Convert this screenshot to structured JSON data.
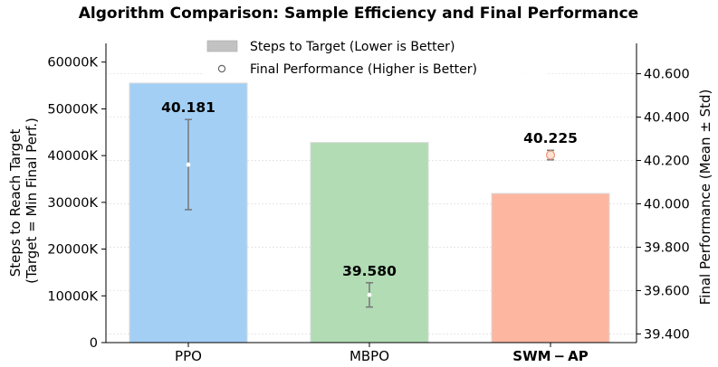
{
  "chart_data": {
    "type": "bar",
    "title": "Algorithm Comparison: Sample Efficiency and Final Performance",
    "categories": [
      "PPO",
      "MBPO",
      "SWM − AP"
    ],
    "bold_categories": [
      false,
      false,
      true
    ],
    "xlabel": "",
    "ylabel_left": "Steps to Reach Target\n(Target = Min Final Perf.)",
    "ylabel_right": "Final Performance (Mean ± Std)",
    "bar_series": {
      "name": "Steps to Target (Lower is Better)",
      "values": [
        55500,
        42800,
        31900
      ],
      "colors": [
        "#a3cff5",
        "#b1dcb4",
        "#fdb7a0"
      ]
    },
    "perf_series": {
      "name": "Final Performance (Higher is Better)",
      "means": [
        40.181,
        39.58,
        40.225
      ],
      "std": [
        0.208,
        0.056,
        0.022
      ],
      "labels": [
        "40.181",
        "39.580",
        "40.225"
      ],
      "marker_colors": [
        "#ffffff",
        "#ffffff",
        "#ffe0d3"
      ]
    },
    "ylim_left": [
      0,
      64000
    ],
    "yticks_left": [
      0,
      10000,
      20000,
      30000,
      40000,
      50000,
      60000
    ],
    "ytick_labels_left": [
      "0",
      "10000K",
      "20000K",
      "30000K",
      "40000K",
      "50000K",
      "60000K"
    ],
    "ylim_right": [
      39.36,
      40.74
    ],
    "yticks_right": [
      39.4,
      39.6,
      39.8,
      40.0,
      40.2,
      40.4,
      40.6
    ],
    "ytick_labels_right": [
      "39.400",
      "39.600",
      "39.800",
      "40.000",
      "40.200",
      "40.400",
      "40.600"
    ],
    "grid": true,
    "legend_position": "top-center"
  }
}
